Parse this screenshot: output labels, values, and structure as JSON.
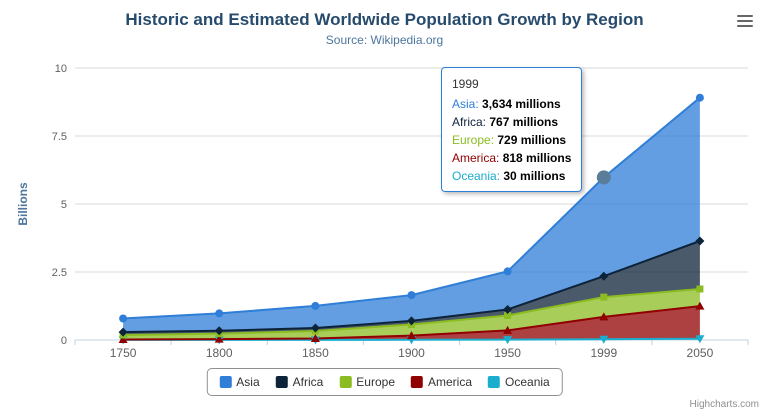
{
  "chart_data": {
    "type": "area",
    "stacking": "normal",
    "title": "Historic and Estimated Worldwide Population Growth by Region",
    "subtitle": "Source: Wikipedia.org",
    "categories": [
      "1750",
      "1800",
      "1850",
      "1900",
      "1950",
      "1999",
      "2050"
    ],
    "xlabel": "",
    "ylabel": "Billions",
    "ylim": [
      0,
      10
    ],
    "yticks": [
      "0",
      "2.5",
      "5",
      "7.5",
      "10"
    ],
    "grid": true,
    "legend_position": "bottom",
    "values_unit": "millions",
    "series": [
      {
        "name": "Asia",
        "color": "#2f7ed8",
        "marker": "circle",
        "values": [
          502,
          635,
          809,
          947,
          1402,
          3634,
          5268
        ]
      },
      {
        "name": "Africa",
        "color": "#0d233a",
        "marker": "diamond",
        "values": [
          106,
          107,
          111,
          133,
          221,
          767,
          1766
        ]
      },
      {
        "name": "Europe",
        "color": "#8bbc21",
        "marker": "square",
        "values": [
          163,
          203,
          276,
          408,
          547,
          729,
          628
        ]
      },
      {
        "name": "America",
        "color": "#910000",
        "marker": "triangle",
        "values": [
          18,
          31,
          54,
          156,
          339,
          818,
          1201
        ]
      },
      {
        "name": "Oceania",
        "color": "#1aadce",
        "marker": "triangle-down",
        "values": [
          2,
          2,
          2,
          6,
          13,
          30,
          46
        ]
      }
    ]
  },
  "tooltip": {
    "header": "1999",
    "rows": [
      {
        "name": "Asia",
        "value": "3,634",
        "unit": "millions",
        "color": "#2f7ed8"
      },
      {
        "name": "Africa",
        "value": "767",
        "unit": "millions",
        "color": "#0d233a"
      },
      {
        "name": "Europe",
        "value": "729",
        "unit": "millions",
        "color": "#8bbc21"
      },
      {
        "name": "America",
        "value": "818",
        "unit": "millions",
        "color": "#910000"
      },
      {
        "name": "Oceania",
        "value": "30",
        "unit": "millions",
        "color": "#1aadce"
      }
    ]
  },
  "hover": {
    "series": "Asia",
    "category": "1999",
    "marker_color": "#5a7d9a"
  },
  "credits": "Highcharts.com",
  "colors": {
    "title": "#274b6d",
    "subtitle": "#4d759e",
    "axis_label": "#606060",
    "axis_title": "#4d759e",
    "grid": "#d8d8d8",
    "axis_line": "#c0d0e0",
    "tooltip_border": "#2f7ed8",
    "legend_border": "#909090"
  }
}
